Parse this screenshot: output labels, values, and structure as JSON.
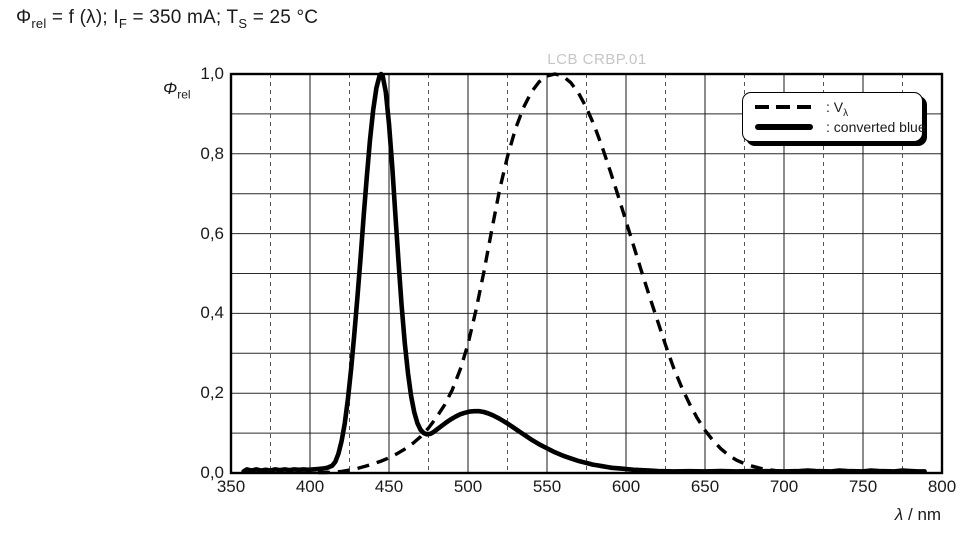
{
  "title": {
    "text": "Φrel = f (λ); IF = 350 mA; TS = 25 °C",
    "segments": [
      {
        "text": "Φ"
      },
      {
        "text": "rel",
        "sub": true
      },
      {
        "text": " = f (λ); I"
      },
      {
        "text": "F",
        "sub": true
      },
      {
        "text": " = 350 mA; T"
      },
      {
        "text": "S",
        "sub": true
      },
      {
        "text": " = 25 °C"
      }
    ]
  },
  "watermark": "LCB CRBP.01",
  "axes": {
    "y_label_segments": [
      {
        "text": "Φ",
        "italic": true
      },
      {
        "text": "rel",
        "sub": true
      }
    ],
    "x_label_segments": [
      {
        "text": "λ",
        "italic": true
      },
      {
        "text": " / nm"
      }
    ]
  },
  "legend": {
    "items": [
      {
        "style": "dashed",
        "name": "V-lambda",
        "segments": [
          {
            "text": ": V"
          },
          {
            "text": "λ",
            "sub": true
          }
        ]
      },
      {
        "style": "solid",
        "name": "converted-blue",
        "segments": [
          {
            "text": ": converted blue"
          }
        ]
      }
    ]
  },
  "chart_data": {
    "type": "line",
    "title": "Φrel = f (λ); IF = 350 mA; TS = 25 °C",
    "xlabel": "λ / nm",
    "ylabel": "Φrel",
    "grid": "on",
    "legend_position": "top-right",
    "x_axis": {
      "min": 350,
      "max": 800,
      "major_step": 50,
      "minor_step": 25,
      "ticks": [
        {
          "v": 350,
          "label": "350"
        },
        {
          "v": 400,
          "label": "400"
        },
        {
          "v": 450,
          "label": "450"
        },
        {
          "v": 500,
          "label": "500"
        },
        {
          "v": 550,
          "label": "550"
        },
        {
          "v": 600,
          "label": "600"
        },
        {
          "v": 650,
          "label": "650"
        },
        {
          "v": 700,
          "label": "700"
        },
        {
          "v": 750,
          "label": "750"
        },
        {
          "v": 800,
          "label": "800"
        }
      ]
    },
    "y_axis": {
      "min": 0,
      "max": 1,
      "major_step": 0.1,
      "ticks": [
        {
          "v": 1.0,
          "label": "1,0"
        },
        {
          "v": 0.8,
          "label": "0,8"
        },
        {
          "v": 0.6,
          "label": "0,6"
        },
        {
          "v": 0.4,
          "label": "0,4"
        },
        {
          "v": 0.2,
          "label": "0,2"
        },
        {
          "v": 0.0,
          "label": "0,0"
        }
      ]
    },
    "series": [
      {
        "name": "Vλ",
        "line_style": "dashed",
        "points": [
          [
            405,
            0.001
          ],
          [
            410,
            0.0012
          ],
          [
            415,
            0.002
          ],
          [
            420,
            0.004
          ],
          [
            425,
            0.0073
          ],
          [
            430,
            0.0116
          ],
          [
            435,
            0.0168
          ],
          [
            440,
            0.023
          ],
          [
            445,
            0.0298
          ],
          [
            450,
            0.038
          ],
          [
            455,
            0.048
          ],
          [
            460,
            0.06
          ],
          [
            465,
            0.0739
          ],
          [
            470,
            0.091
          ],
          [
            475,
            0.1126
          ],
          [
            480,
            0.139
          ],
          [
            485,
            0.1693
          ],
          [
            490,
            0.208
          ],
          [
            495,
            0.2586
          ],
          [
            500,
            0.323
          ],
          [
            505,
            0.4073
          ],
          [
            510,
            0.503
          ],
          [
            515,
            0.6082
          ],
          [
            520,
            0.71
          ],
          [
            525,
            0.7932
          ],
          [
            530,
            0.862
          ],
          [
            535,
            0.9149
          ],
          [
            540,
            0.954
          ],
          [
            545,
            0.9803
          ],
          [
            550,
            0.995
          ],
          [
            555,
            1.0
          ],
          [
            560,
            0.995
          ],
          [
            565,
            0.9786
          ],
          [
            570,
            0.952
          ],
          [
            575,
            0.9154
          ],
          [
            580,
            0.87
          ],
          [
            585,
            0.8163
          ],
          [
            590,
            0.757
          ],
          [
            595,
            0.6949
          ],
          [
            600,
            0.631
          ],
          [
            605,
            0.5668
          ],
          [
            610,
            0.503
          ],
          [
            615,
            0.4412
          ],
          [
            620,
            0.381
          ],
          [
            625,
            0.321
          ],
          [
            630,
            0.265
          ],
          [
            635,
            0.217
          ],
          [
            640,
            0.175
          ],
          [
            645,
            0.1382
          ],
          [
            650,
            0.107
          ],
          [
            655,
            0.0816
          ],
          [
            660,
            0.061
          ],
          [
            665,
            0.0446
          ],
          [
            670,
            0.032
          ],
          [
            675,
            0.0232
          ],
          [
            680,
            0.017
          ],
          [
            685,
            0.0119
          ],
          [
            690,
            0.0082
          ],
          [
            695,
            0.0057
          ],
          [
            700,
            0.0041
          ]
        ]
      },
      {
        "name": "converted blue",
        "line_style": "solid",
        "points": [
          [
            358,
            0.004
          ],
          [
            360,
            0.009
          ],
          [
            363,
            0.006
          ],
          [
            366,
            0.009
          ],
          [
            369,
            0.006
          ],
          [
            372,
            0.008
          ],
          [
            375,
            0.006
          ],
          [
            378,
            0.009
          ],
          [
            381,
            0.007
          ],
          [
            384,
            0.009
          ],
          [
            387,
            0.007
          ],
          [
            390,
            0.009
          ],
          [
            393,
            0.008
          ],
          [
            396,
            0.009
          ],
          [
            399,
            0.008
          ],
          [
            402,
            0.009
          ],
          [
            405,
            0.01
          ],
          [
            408,
            0.011
          ],
          [
            411,
            0.013
          ],
          [
            414,
            0.018
          ],
          [
            416,
            0.028
          ],
          [
            418,
            0.048
          ],
          [
            420,
            0.08
          ],
          [
            422,
            0.125
          ],
          [
            424,
            0.185
          ],
          [
            426,
            0.26
          ],
          [
            428,
            0.345
          ],
          [
            430,
            0.44
          ],
          [
            432,
            0.54
          ],
          [
            434,
            0.645
          ],
          [
            436,
            0.745
          ],
          [
            438,
            0.835
          ],
          [
            440,
            0.91
          ],
          [
            442,
            0.965
          ],
          [
            444,
            0.995
          ],
          [
            445,
            1.0
          ],
          [
            446,
            0.995
          ],
          [
            448,
            0.955
          ],
          [
            450,
            0.875
          ],
          [
            452,
            0.77
          ],
          [
            454,
            0.65
          ],
          [
            456,
            0.53
          ],
          [
            458,
            0.42
          ],
          [
            460,
            0.325
          ],
          [
            462,
            0.25
          ],
          [
            464,
            0.193
          ],
          [
            466,
            0.152
          ],
          [
            468,
            0.125
          ],
          [
            470,
            0.108
          ],
          [
            472,
            0.1
          ],
          [
            474,
            0.097
          ],
          [
            476,
            0.098
          ],
          [
            478,
            0.102
          ],
          [
            480,
            0.108
          ],
          [
            483,
            0.117
          ],
          [
            486,
            0.126
          ],
          [
            489,
            0.134
          ],
          [
            492,
            0.141
          ],
          [
            495,
            0.147
          ],
          [
            498,
            0.151
          ],
          [
            501,
            0.154
          ],
          [
            504,
            0.155
          ],
          [
            507,
            0.155
          ],
          [
            510,
            0.153
          ],
          [
            513,
            0.149
          ],
          [
            516,
            0.144
          ],
          [
            519,
            0.138
          ],
          [
            522,
            0.131
          ],
          [
            525,
            0.124
          ],
          [
            528,
            0.116
          ],
          [
            531,
            0.108
          ],
          [
            534,
            0.1
          ],
          [
            537,
            0.092
          ],
          [
            540,
            0.084
          ],
          [
            543,
            0.077
          ],
          [
            546,
            0.07
          ],
          [
            549,
            0.064
          ],
          [
            552,
            0.058
          ],
          [
            555,
            0.052
          ],
          [
            558,
            0.047
          ],
          [
            561,
            0.042
          ],
          [
            564,
            0.038
          ],
          [
            567,
            0.034
          ],
          [
            570,
            0.03
          ],
          [
            573,
            0.027
          ],
          [
            576,
            0.024
          ],
          [
            579,
            0.021
          ],
          [
            582,
            0.019
          ],
          [
            585,
            0.017
          ],
          [
            588,
            0.015
          ],
          [
            591,
            0.013
          ],
          [
            594,
            0.012
          ],
          [
            597,
            0.011
          ],
          [
            600,
            0.01
          ],
          [
            605,
            0.008
          ],
          [
            610,
            0.007
          ],
          [
            615,
            0.006
          ],
          [
            620,
            0.005
          ],
          [
            630,
            0.004
          ],
          [
            640,
            0.0045
          ],
          [
            650,
            0.004
          ],
          [
            660,
            0.005
          ],
          [
            670,
            0.004
          ],
          [
            680,
            0.005
          ],
          [
            690,
            0.0045
          ],
          [
            700,
            0.004
          ],
          [
            710,
            0.005
          ],
          [
            715,
            0.006
          ],
          [
            720,
            0.005
          ],
          [
            730,
            0.004
          ],
          [
            735,
            0.006
          ],
          [
            740,
            0.005
          ],
          [
            750,
            0.004
          ],
          [
            755,
            0.006
          ],
          [
            760,
            0.005
          ],
          [
            770,
            0.004
          ],
          [
            775,
            0.006
          ],
          [
            780,
            0.005
          ],
          [
            785,
            0.004
          ],
          [
            789,
            0.004
          ]
        ]
      }
    ]
  }
}
